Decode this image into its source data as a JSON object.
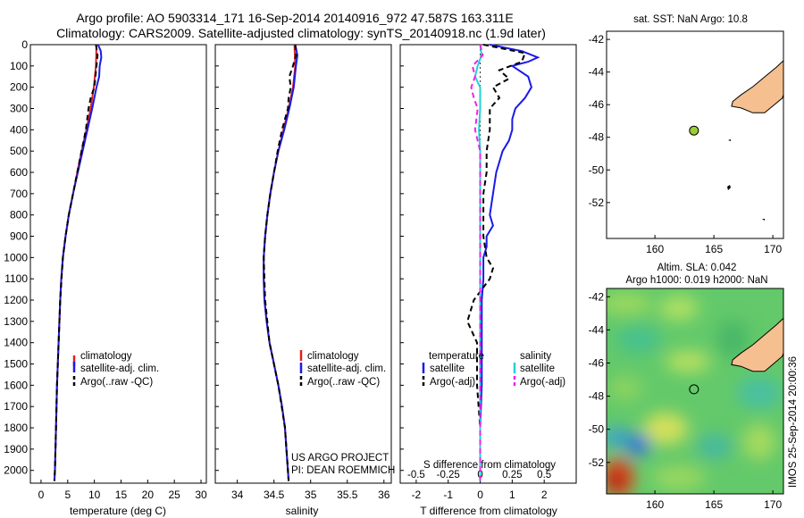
{
  "title_line1": "Argo profile: AO 5903314_171 16-Sep-2014 20140916_972 47.587S 163.311E",
  "title_line2": "Climatology: CARS2009. Satellite-adjusted climatology: synTS_20140918.nc (1.9d later)",
  "colors": {
    "climatology": "#e02020",
    "satellite": "#1a1ae6",
    "argo": "#000000",
    "sal_satellite": "#22d3d3",
    "sal_argo": "#ee22ee",
    "land": "#f5bf8f",
    "float_marker": "#9acd32"
  },
  "footer": {
    "project": "US ARGO PROJECT",
    "pi": "PI: DEAN ROEMMICH",
    "timestamp": "IMOS 25-Sep-2014 20:00:36"
  },
  "chart_data": [
    {
      "type": "line",
      "xlabel": "temperature (deg C)",
      "ylabel": "",
      "xlim": [
        -2,
        31
      ],
      "ylim": [
        2060,
        0
      ],
      "xticks": [
        0,
        5,
        10,
        15,
        20,
        25,
        30
      ],
      "yticks": [
        0,
        100,
        200,
        300,
        400,
        500,
        600,
        700,
        800,
        900,
        1000,
        1100,
        1200,
        1300,
        1400,
        1500,
        1600,
        1700,
        1800,
        1900,
        2000
      ],
      "legend": [
        "climatology",
        "satellite-adj. clim.",
        "Argo(..raw -QC)"
      ],
      "series": [
        {
          "name": "climatology",
          "depth": [
            0,
            100,
            200,
            300,
            400,
            500,
            600,
            700,
            800,
            900,
            1000,
            1100,
            1200,
            1400,
            1600,
            1800,
            2000,
            2050
          ],
          "values": [
            10.4,
            10.3,
            9.9,
            9.3,
            8.5,
            7.6,
            6.8,
            6.0,
            5.2,
            4.6,
            4.1,
            3.8,
            3.6,
            3.3,
            3.0,
            2.8,
            2.6,
            2.5
          ]
        },
        {
          "name": "satellite-adj. clim.",
          "depth": [
            0,
            30,
            60,
            100,
            150,
            200,
            300,
            400,
            500,
            600,
            700,
            800,
            900,
            1000,
            1100,
            1200,
            1400,
            1600,
            1800,
            2000,
            2050
          ],
          "values": [
            10.7,
            11.2,
            11.3,
            11.0,
            10.9,
            10.4,
            9.6,
            8.7,
            7.8,
            6.9,
            6.0,
            5.2,
            4.6,
            4.1,
            3.8,
            3.6,
            3.3,
            3.0,
            2.8,
            2.6,
            2.5
          ]
        },
        {
          "name": "Argo(..raw -QC)",
          "depth": [
            0,
            50,
            100,
            150,
            200,
            250,
            300,
            400,
            500,
            600,
            700,
            800,
            900,
            1000,
            1200,
            1400,
            1600,
            1800,
            2000,
            2050
          ],
          "values": [
            10.3,
            10.6,
            10.4,
            10.2,
            10.0,
            9.3,
            8.9,
            8.4,
            7.6,
            6.8,
            6.0,
            5.2,
            4.6,
            4.1,
            3.6,
            3.3,
            3.0,
            2.8,
            2.6,
            2.5
          ]
        }
      ]
    },
    {
      "type": "line",
      "xlabel": "salinity",
      "xlim": [
        33.7,
        36.1
      ],
      "ylim": [
        2060,
        0
      ],
      "xticks": [
        34,
        34.5,
        35,
        35.5,
        36
      ],
      "legend": [
        "climatology",
        "satellite-adj. clim.",
        "Argo(..raw -QC)"
      ],
      "series": [
        {
          "name": "climatology",
          "depth": [
            0,
            100,
            200,
            300,
            400,
            500,
            600,
            700,
            800,
            900,
            1000,
            1100,
            1200,
            1300,
            1400,
            1500,
            1600,
            1700,
            1800,
            1900,
            2000,
            2050
          ],
          "values": [
            34.78,
            34.79,
            34.76,
            34.7,
            34.63,
            34.56,
            34.5,
            34.45,
            34.41,
            34.38,
            34.36,
            34.36,
            34.37,
            34.4,
            34.44,
            34.5,
            34.56,
            34.61,
            34.65,
            34.67,
            34.69,
            34.7
          ]
        },
        {
          "name": "satellite-adj. clim.",
          "depth": [
            0,
            50,
            100,
            200,
            300,
            400,
            500,
            600,
            700,
            800,
            900,
            1000,
            1100,
            1200,
            1300,
            1400,
            1500,
            1600,
            1700,
            1800,
            1900,
            2000,
            2050
          ],
          "values": [
            34.79,
            34.82,
            34.8,
            34.77,
            34.71,
            34.64,
            34.56,
            34.5,
            34.45,
            34.41,
            34.38,
            34.36,
            34.36,
            34.37,
            34.4,
            34.44,
            34.5,
            34.56,
            34.61,
            34.65,
            34.67,
            34.69,
            34.7
          ]
        },
        {
          "name": "Argo(..raw -QC)",
          "depth": [
            0,
            50,
            100,
            150,
            200,
            250,
            300,
            400,
            500,
            600,
            700,
            800,
            900,
            1000,
            1100,
            1200,
            1400,
            1600,
            1800,
            2000,
            2050
          ],
          "values": [
            34.79,
            34.8,
            34.76,
            34.71,
            34.73,
            34.7,
            34.69,
            34.61,
            34.55,
            34.5,
            34.45,
            34.41,
            34.38,
            34.36,
            34.37,
            34.38,
            34.44,
            34.56,
            34.65,
            34.69,
            34.7
          ]
        }
      ]
    },
    {
      "type": "line",
      "xlabel": "T difference from climatology",
      "top_label": "S difference from climatology",
      "xlim": [
        -2.5,
        3.0
      ],
      "ylim": [
        2060,
        0
      ],
      "xticks": [
        -2,
        -1,
        0,
        1,
        2
      ],
      "top_ticks": [
        "-0.5",
        "-0.25",
        "0",
        "0.25",
        "0.5"
      ],
      "legend_headers": [
        "temperature",
        "salinity"
      ],
      "legend": [
        "satellite",
        "Argo(-adj)",
        "satellite",
        "Argo(-adj)"
      ],
      "series": [
        {
          "name": "satellite",
          "quantity": "temperature",
          "depth": [
            0,
            30,
            60,
            80,
            100,
            150,
            200,
            250,
            300,
            350,
            400,
            450,
            500,
            600,
            700,
            800,
            850,
            900,
            950,
            1000,
            1100,
            1200,
            1400,
            1600,
            1800,
            2000,
            2050
          ],
          "values": [
            0.3,
            1.3,
            1.8,
            1.5,
            1.0,
            1.5,
            1.6,
            1.4,
            1.1,
            1.0,
            1.0,
            0.9,
            0.7,
            0.5,
            0.4,
            0.3,
            0.4,
            0.2,
            0.2,
            0.1,
            0.1,
            0.05,
            0.05,
            0.05,
            0.0,
            0.0,
            0.0
          ]
        },
        {
          "name": "Argo(-adj)",
          "quantity": "temperature",
          "depth": [
            0,
            40,
            80,
            120,
            160,
            200,
            250,
            300,
            400,
            500,
            600,
            700,
            800,
            900,
            1000,
            1050,
            1100,
            1200,
            1300,
            1400,
            1500,
            1600,
            1800,
            2000,
            2050
          ],
          "values": [
            0.1,
            1.4,
            1.3,
            0.6,
            0.9,
            0.4,
            0.6,
            0.3,
            0.3,
            0.2,
            0.2,
            0.1,
            0.1,
            0.1,
            0.2,
            0.4,
            0.3,
            -0.2,
            -0.4,
            -0.1,
            -0.1,
            -0.1,
            0.0,
            0.0,
            0.0
          ]
        },
        {
          "name": "satellite",
          "quantity": "salinity",
          "depth": [
            0,
            50,
            100,
            150,
            200,
            300,
            400,
            500,
            600,
            700,
            800,
            900,
            1000,
            1200,
            1400,
            1600,
            1800,
            2000,
            2050
          ],
          "values": [
            0.0,
            0.01,
            -0.02,
            -0.04,
            0.0,
            0.0,
            -0.01,
            0.0,
            0.0,
            0.0,
            0.0,
            0.0,
            0.0,
            0.0,
            0.0,
            0.0,
            0.0,
            0.0,
            0.0
          ]
        },
        {
          "name": "Argo(-adj)",
          "quantity": "salinity",
          "depth": [
            0,
            50,
            100,
            150,
            200,
            250,
            300,
            400,
            500,
            600,
            700,
            800,
            900,
            1000,
            1100,
            1200,
            1400,
            1600,
            1800,
            2000,
            2050
          ],
          "values": [
            0.0,
            0.02,
            -0.06,
            -0.04,
            -0.07,
            -0.05,
            -0.02,
            -0.04,
            0.0,
            0.0,
            0.0,
            0.0,
            0.0,
            0.0,
            0.0,
            0.0,
            0.0,
            0.0,
            0.0,
            0.0,
            0.0
          ]
        }
      ]
    },
    {
      "type": "map",
      "title": "sat. SST: NaN Argo: 10.8",
      "xlim": [
        155.9,
        170.9
      ],
      "ylim": [
        -54.2,
        -41.5
      ],
      "xticks": [
        160,
        165,
        170
      ],
      "yticks": [
        -42,
        -44,
        -46,
        -48,
        -50,
        -52
      ],
      "float_position": {
        "lon": 163.311,
        "lat": -47.587
      }
    },
    {
      "type": "heatmap",
      "title_line1": "Altim. SLA: 0.042",
      "title_line2": "Argo h1000: 0.019 h2000: NaN",
      "xlim": [
        155.9,
        170.9
      ],
      "ylim": [
        -53.9,
        -41.5
      ],
      "xticks": [
        160,
        165,
        170
      ],
      "yticks": [
        -42,
        -44,
        -46,
        -48,
        -50,
        -52
      ],
      "float_position": {
        "lon": 163.311,
        "lat": -47.587
      }
    }
  ]
}
